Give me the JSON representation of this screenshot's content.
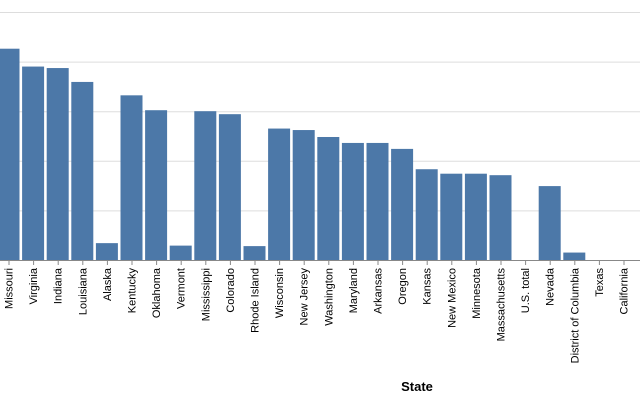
{
  "chart_data": {
    "type": "bar",
    "xlabel": "State",
    "ylabel": "",
    "ylim": [
      0,
      5
    ],
    "grid": true,
    "bar_color": "#4c78a8",
    "categories": [
      "Missouri",
      "Virginia",
      "Indiana",
      "Louisiana",
      "Alaska",
      "Kentucky",
      "Oklahoma",
      "Vermont",
      "Mississippi",
      "Colorado",
      "Rhode Island",
      "Wisconsin",
      "New Jersey",
      "Washington",
      "Maryland",
      "Arkansas",
      "Oregon",
      "Kansas",
      "New Mexico",
      "Minnesota",
      "Massachusetts",
      "U.S. total",
      "Nevada",
      "District of Columbia",
      "Texas",
      "California"
    ],
    "values": [
      4.26,
      3.9,
      3.87,
      3.59,
      0.34,
      3.32,
      3.02,
      0.29,
      3.0,
      2.94,
      0.28,
      2.65,
      2.62,
      2.48,
      2.36,
      2.36,
      2.24,
      1.83,
      1.74,
      1.74,
      1.71,
      0,
      1.49,
      0.15,
      0,
      0
    ]
  }
}
